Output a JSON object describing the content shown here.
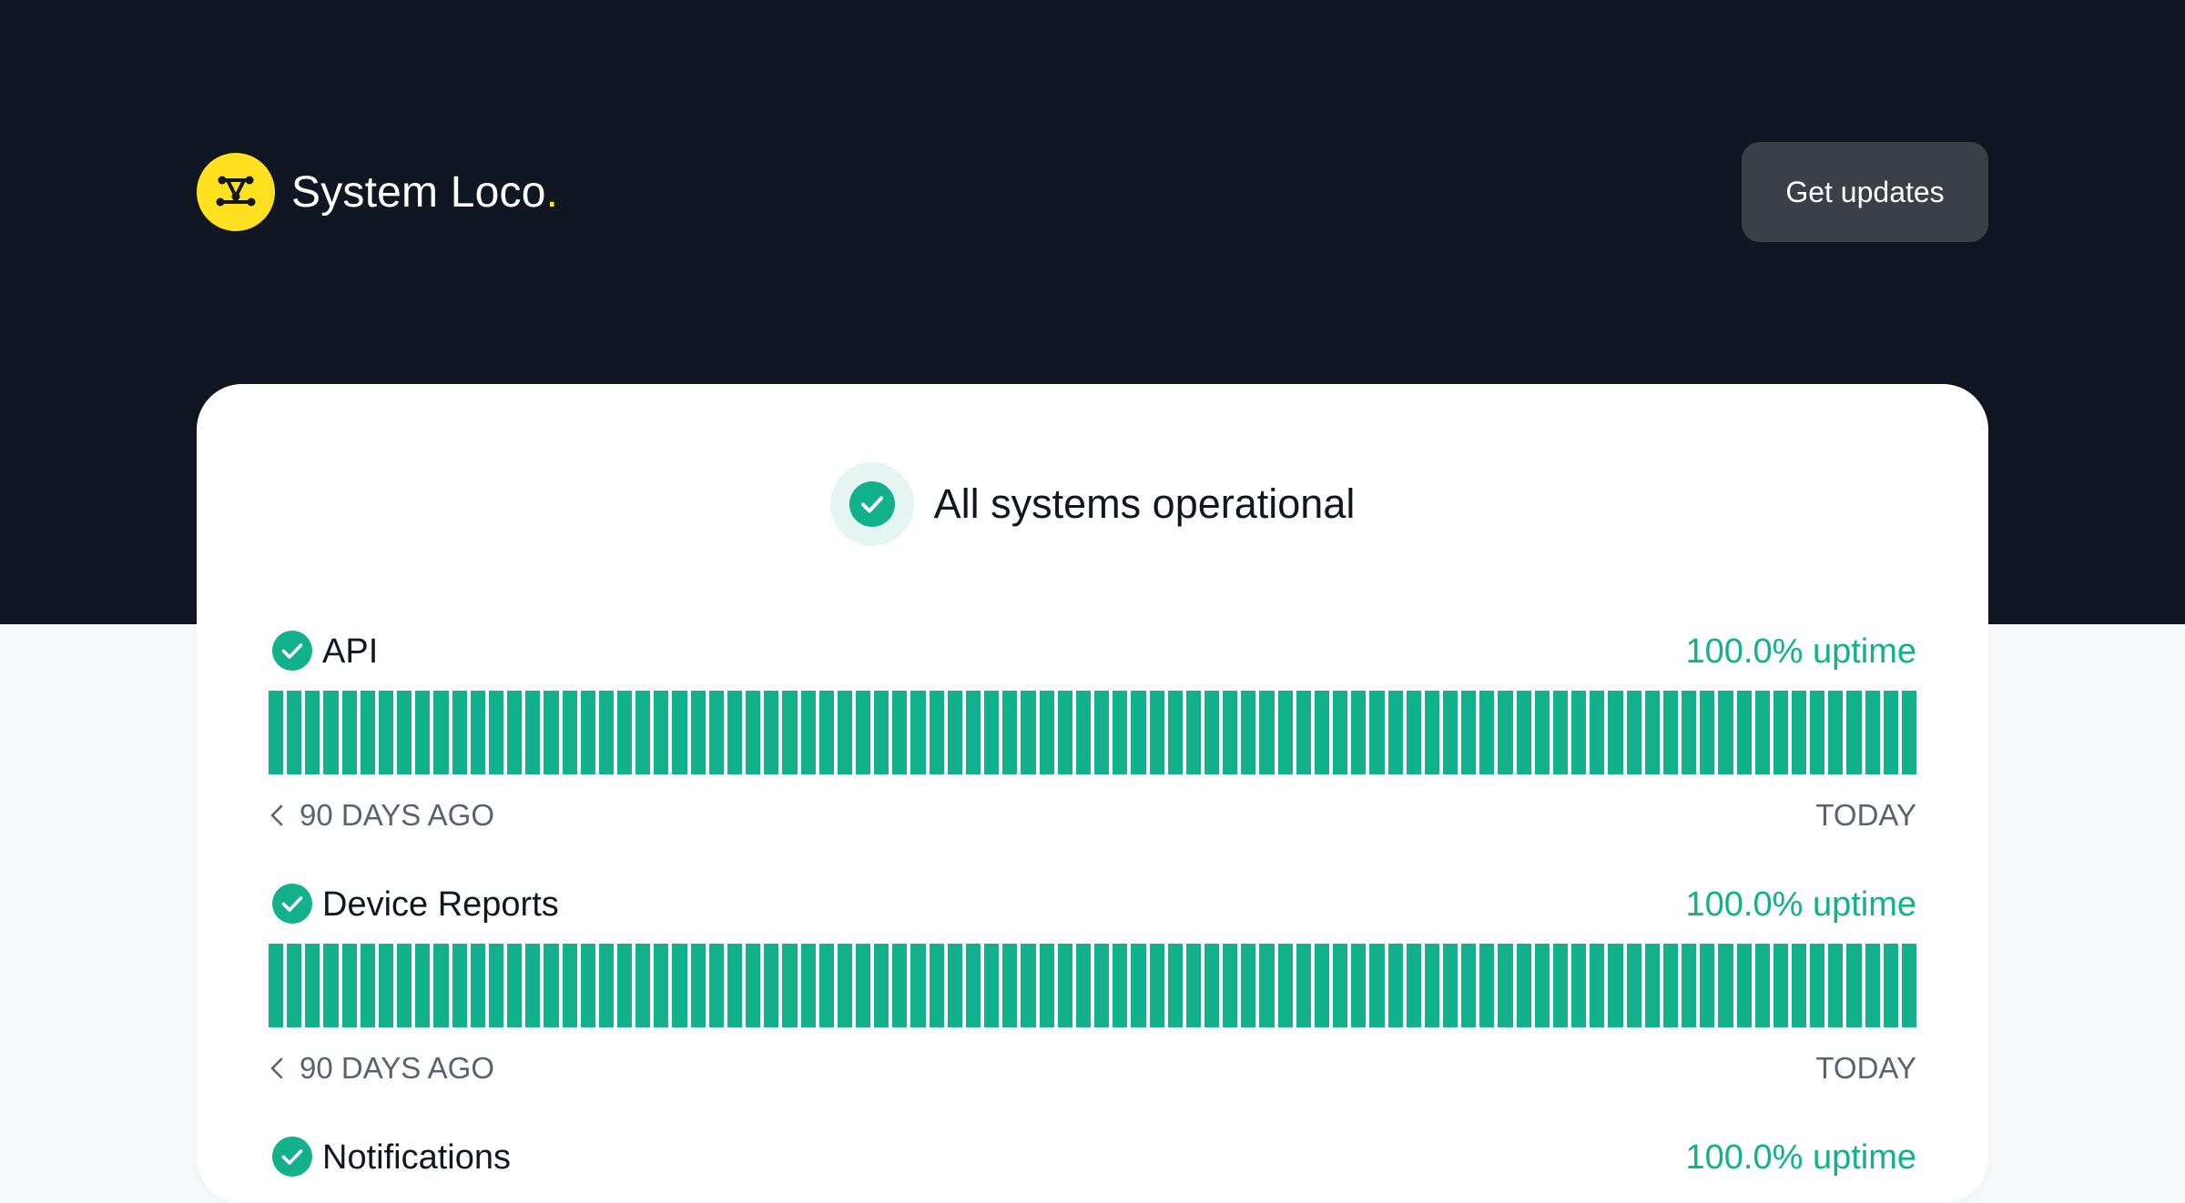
{
  "brand": {
    "name": "System Loco",
    "dot": ".",
    "accent_color": "#ffe11f",
    "logo_icon": "network-nodes-icon"
  },
  "header": {
    "updates_button_label": "Get updates"
  },
  "status": {
    "overall_label": "All systems operational",
    "icon": "check-circle-icon",
    "color": "#13b08c"
  },
  "components": [
    {
      "name": "API",
      "uptime_label": "100.0% uptime",
      "status": "operational",
      "start_label": "90 DAYS AGO",
      "end_label": "TODAY",
      "days": 90,
      "day_status": "operational"
    },
    {
      "name": "Device Reports",
      "uptime_label": "100.0% uptime",
      "status": "operational",
      "start_label": "90 DAYS AGO",
      "end_label": "TODAY",
      "days": 90,
      "day_status": "operational"
    },
    {
      "name": "Notifications",
      "uptime_label": "100.0% uptime",
      "status": "operational"
    }
  ],
  "colors": {
    "background_dark": "#111722",
    "operational": "#13b08c",
    "button_bg": "#3b3f46"
  }
}
